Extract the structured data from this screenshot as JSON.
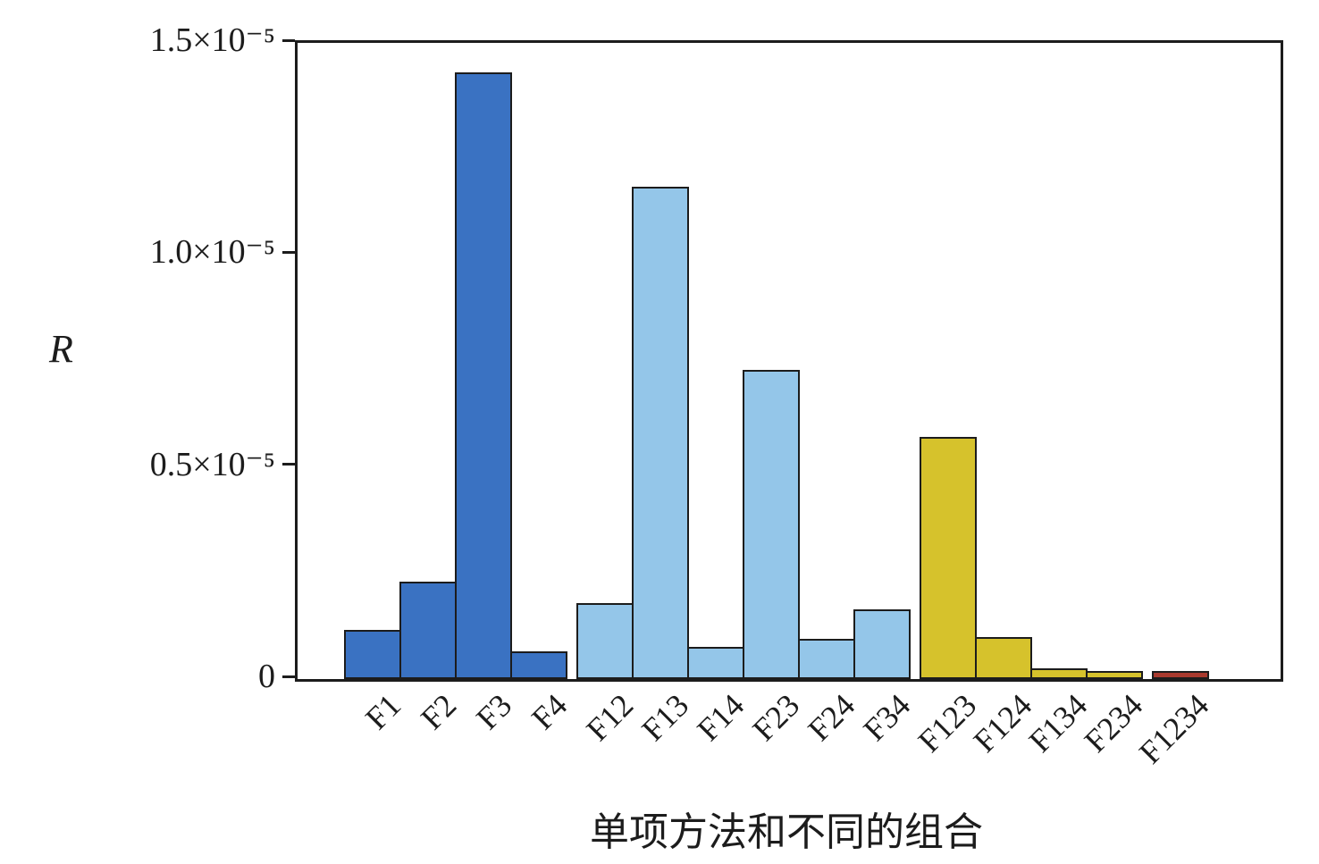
{
  "chart_data": {
    "type": "bar",
    "title": "",
    "xlabel": "单项方法和不同的组合",
    "ylabel": "R",
    "y_unit": "×10⁻⁵",
    "ylim_x1e5": [
      0,
      1.5
    ],
    "grid": false,
    "legend": "none",
    "categories": [
      "F1",
      "F2",
      "F3",
      "F4",
      "F12",
      "F13",
      "F14",
      "F23",
      "F24",
      "F34",
      "F123",
      "F124",
      "F134",
      "F234",
      "F1234"
    ],
    "values_x1e5": [
      0.115,
      0.23,
      1.43,
      0.065,
      0.18,
      1.16,
      0.075,
      0.73,
      0.095,
      0.165,
      0.57,
      0.1,
      0.025,
      0.02,
      0.02
    ],
    "groups": [
      0,
      0,
      0,
      0,
      1,
      1,
      1,
      1,
      1,
      1,
      2,
      2,
      2,
      2,
      3
    ],
    "group_colors": [
      "#3a72c2",
      "#94c6e9",
      "#d6c22c",
      "#a93a2e"
    ],
    "bar_edge_color": "#1c1c1c",
    "yticks": [
      {
        "value": 0,
        "label": "0"
      },
      {
        "value": 0.5,
        "label": "0.5×10⁻⁵"
      },
      {
        "value": 1.0,
        "label": "1.0×10⁻⁵"
      },
      {
        "value": 1.5,
        "label": "1.5×10⁻⁵"
      }
    ]
  }
}
